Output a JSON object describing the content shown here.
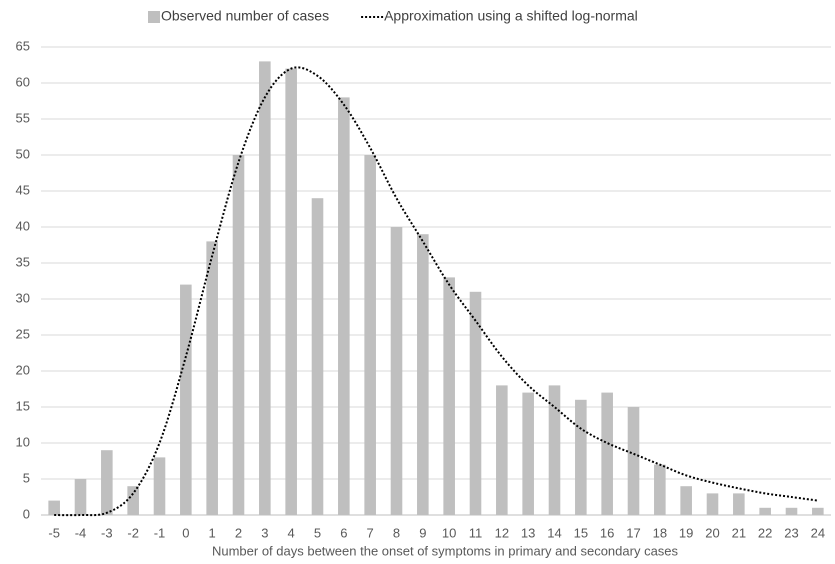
{
  "chart_data": {
    "type": "bar",
    "x_label": "Number of days between the onset of symptoms in primary and secondary cases",
    "categories": [
      "-5",
      "-4",
      "-3",
      "-2",
      "-1",
      "0",
      "1",
      "2",
      "3",
      "4",
      "5",
      "6",
      "7",
      "8",
      "9",
      "10",
      "11",
      "12",
      "13",
      "14",
      "15",
      "16",
      "17",
      "18",
      "19",
      "20",
      "21",
      "22",
      "23",
      "24"
    ],
    "series": [
      {
        "name": "Observed number of cases",
        "type": "bar",
        "color": "#bfbfbf",
        "values": [
          2,
          5,
          9,
          4,
          8,
          32,
          38,
          50,
          63,
          62,
          44,
          58,
          50,
          40,
          39,
          33,
          31,
          18,
          17,
          18,
          16,
          17,
          15,
          7,
          4,
          3,
          3,
          1,
          1,
          1
        ]
      },
      {
        "name": "Approximation using a shifted log-normal",
        "type": "line",
        "color": "#000000",
        "style": "dotted",
        "values": [
          0,
          0,
          0.3,
          3,
          10,
          22,
          36,
          49,
          58,
          62,
          61,
          57,
          51,
          44,
          38,
          32,
          27,
          22,
          18,
          15,
          12,
          10,
          8.5,
          7,
          5.5,
          4.5,
          3.7,
          3,
          2.5,
          2
        ]
      }
    ],
    "ylim": [
      0,
      65
    ],
    "yticks": [
      0,
      5,
      10,
      15,
      20,
      25,
      30,
      35,
      40,
      45,
      50,
      55,
      60,
      65
    ],
    "grid": true,
    "legend": "top"
  }
}
